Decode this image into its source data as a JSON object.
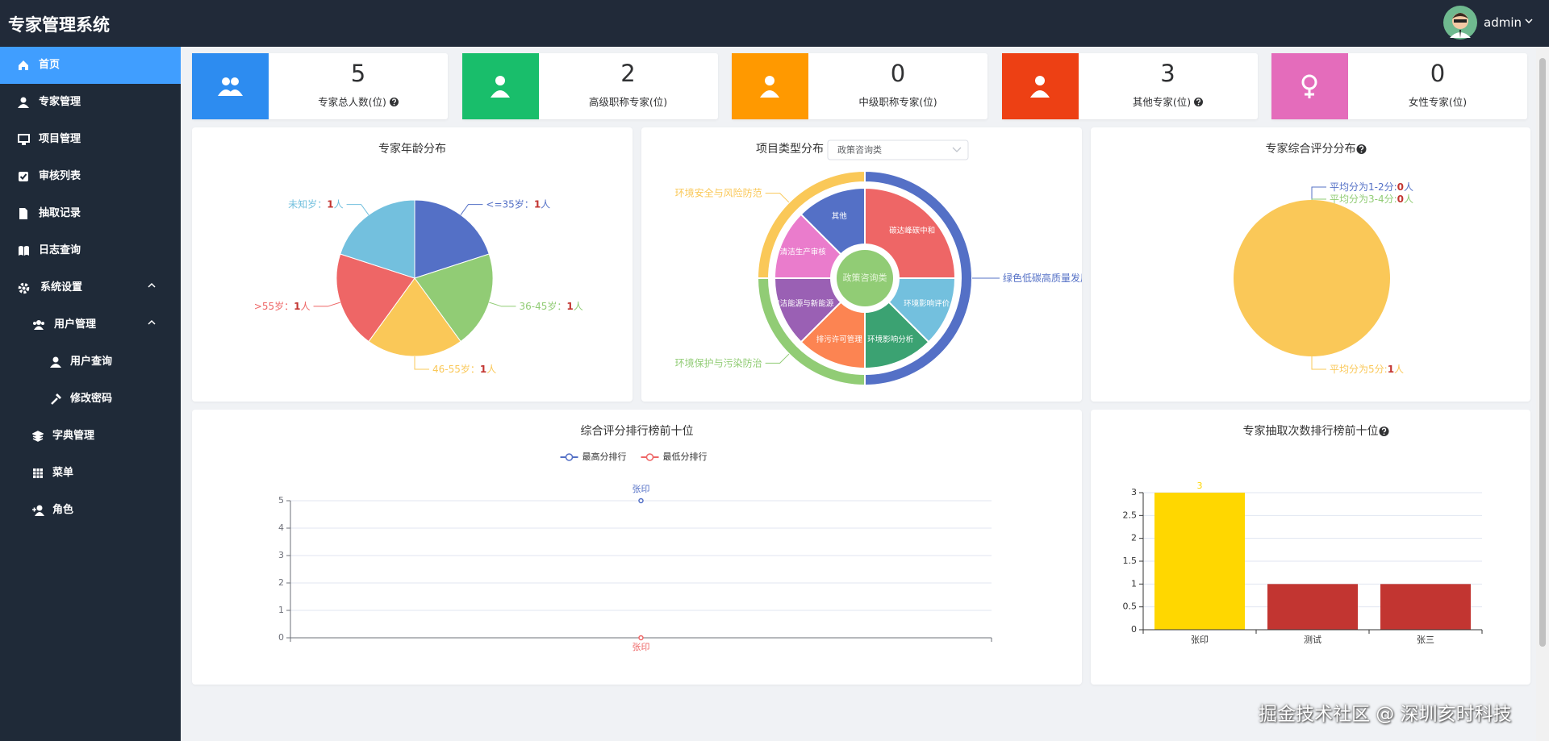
{
  "header": {
    "title": "专家管理系统",
    "user": "admin"
  },
  "sidebar": [
    "首页",
    "专家管理",
    "项目管理",
    "审核列表",
    "抽取记录",
    "日志查询",
    "系统设置",
    "用户管理",
    "用户查询",
    "修改密码",
    "字典管理",
    "菜单",
    "角色"
  ],
  "stats": [
    {
      "value": 5,
      "label": "专家总人数(位)",
      "color": "#2d8cf0",
      "help": true
    },
    {
      "value": 2,
      "label": "高级职称专家(位)",
      "color": "#19be6b",
      "help": false
    },
    {
      "value": 0,
      "label": "中级职称专家(位)",
      "color": "#ff9900",
      "help": false
    },
    {
      "value": 3,
      "label": "其他专家(位)",
      "color": "#ed4014",
      "help": true
    },
    {
      "value": 0,
      "label": "女性专家(位)",
      "color": "#e46cbb",
      "help": false
    }
  ],
  "chart_data": [
    {
      "type": "pie",
      "title": "专家年龄分布",
      "help": false,
      "categories": [
        "<=35岁",
        "36-45岁",
        "46-55岁",
        ">55岁",
        "未知岁"
      ],
      "values": [
        1,
        1,
        1,
        1,
        1
      ],
      "colors": [
        "#5470c6",
        "#91cc75",
        "#fac858",
        "#ee6666",
        "#73c0de"
      ],
      "label_separator": "：",
      "unit": "人"
    },
    {
      "type": "sunburst",
      "title": "项目类型分布",
      "help": false,
      "select": "政策咨询类",
      "center": "政策咨询类",
      "inner": {
        "categories": [
          "碳达峰碳中和",
          "环境影响评价",
          "环境影响分析",
          "排污许可管理",
          "清洁能源与新能源",
          "清洁生产审核",
          "其他"
        ],
        "values": [
          2,
          1,
          1,
          1,
          1,
          1,
          1
        ],
        "colors": [
          "#ee6666",
          "#73c0de",
          "#3ba272",
          "#fc8452",
          "#9a60b4",
          "#ea7ccc",
          "#5470c6"
        ]
      },
      "outer": {
        "categories": [
          "绿色低碳高质量发展",
          "环境保护与污染防治",
          "环境安全与风险防范"
        ],
        "values": [
          4,
          2,
          2
        ],
        "colors": [
          "#5470c6",
          "#91cc75",
          "#fac858"
        ]
      }
    },
    {
      "type": "pie",
      "title": "专家综合评分分布",
      "help": true,
      "categories": [
        "平均分为1-2分",
        "平均分为3-4分",
        "平均分为5分"
      ],
      "values": [
        0,
        0,
        1
      ],
      "colors": [
        "#5470c6",
        "#91cc75",
        "#fac858"
      ],
      "label_separator": ":",
      "unit": "人"
    },
    {
      "type": "line",
      "title": "综合评分排行榜前十位",
      "help": false,
      "categories": [
        "张印"
      ],
      "series": [
        {
          "name": "最高分排行",
          "color": "#5470c6",
          "values": [
            5
          ]
        },
        {
          "name": "最低分排行",
          "color": "#ee6666",
          "values": [
            0
          ]
        }
      ],
      "ylim": [
        0,
        5
      ],
      "yticks": [
        0,
        1,
        2,
        3,
        4,
        5
      ],
      "grid": true
    },
    {
      "type": "bar",
      "title": "专家抽取次数排行榜前十位",
      "help": true,
      "categories": [
        "张印",
        "测试",
        "张三"
      ],
      "values": [
        3,
        1,
        1
      ],
      "colors": [
        "#ffd700",
        "#c23531",
        "#c23531"
      ],
      "ylim": [
        0,
        3
      ],
      "yticks": [
        0,
        0.5,
        1,
        1.5,
        2,
        2.5,
        3
      ],
      "grid": true
    }
  ],
  "watermark": "掘金技术社区 @ 深圳亥时科技"
}
